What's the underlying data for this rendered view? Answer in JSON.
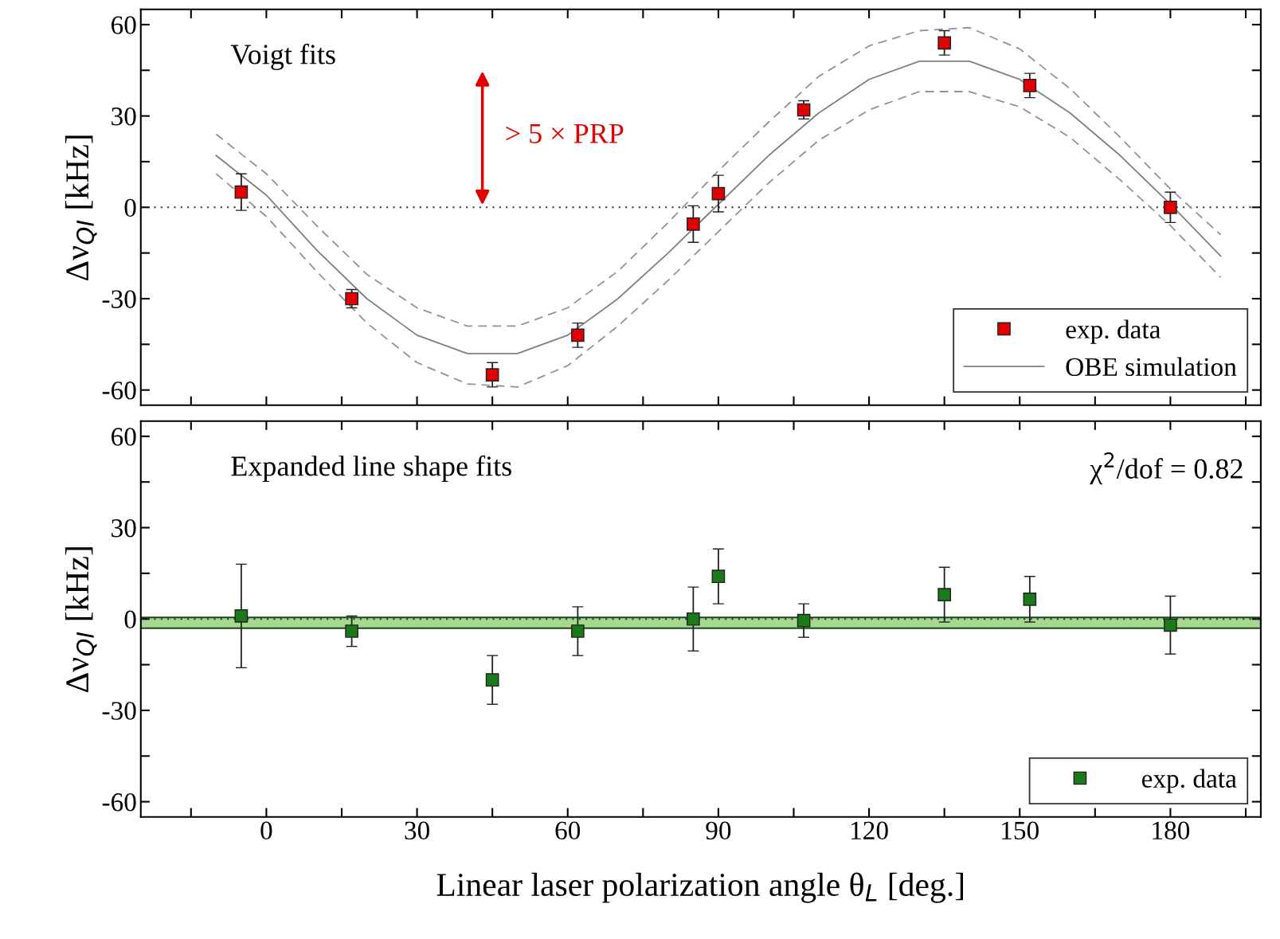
{
  "chart_data": [
    {
      "type": "scatter",
      "ylabel": "Δν$_{QI}$ [kHz]",
      "annotations": [
        "Voigt fits",
        "> 5 × PRP"
      ],
      "xlim": [
        -25,
        198
      ],
      "ylim": [
        -65,
        65
      ],
      "xticks": [
        {
          "value": -15,
          "label": null
        },
        {
          "value": 0,
          "label": null
        },
        {
          "value": 15,
          "label": null
        },
        {
          "value": 30,
          "label": null
        },
        {
          "value": 45,
          "label": null
        },
        {
          "value": 60,
          "label": null
        },
        {
          "value": 75,
          "label": null
        },
        {
          "value": 90,
          "label": null
        },
        {
          "value": 105,
          "label": null
        },
        {
          "value": 120,
          "label": null
        },
        {
          "value": 135,
          "label": null
        },
        {
          "value": 150,
          "label": null
        },
        {
          "value": 165,
          "label": null
        },
        {
          "value": 180,
          "label": null
        },
        {
          "value": 195,
          "label": null
        }
      ],
      "yticks": [
        60,
        {
          "value": 45,
          "label": null
        },
        30,
        {
          "value": 15,
          "label": null
        },
        0,
        {
          "value": -15,
          "label": null
        },
        -30,
        {
          "value": -45,
          "label": null
        },
        -60
      ],
      "tick_labels": "y",
      "legend": "bottom right",
      "grid": false,
      "ref_lines": [
        {
          "axis": "y",
          "value": 0,
          "label": null,
          "color": "#333333",
          "line_style": "dotted"
        }
      ],
      "series": [
        {
          "name": "exp. data",
          "color": "#e00000",
          "marker": "square",
          "x": [
            -5,
            17,
            45,
            62,
            85,
            90,
            107,
            135,
            152,
            180
          ],
          "values": [
            5,
            -30,
            -55,
            -42,
            -5.5,
            4.5,
            32,
            54,
            40,
            0
          ],
          "errors": [
            6,
            3,
            4,
            4,
            6,
            6,
            3,
            4,
            4,
            5
          ]
        },
        {
          "type": "line",
          "name": "OBE simulation",
          "color": "#808080",
          "line_style": "solid",
          "marker": "none",
          "x": [
            -10,
            0,
            10,
            20,
            30,
            40,
            50,
            60,
            70,
            80,
            90,
            100,
            110,
            120,
            130,
            140,
            150,
            160,
            170,
            180,
            190
          ],
          "values": [
            17,
            4,
            -14,
            -30,
            -42,
            -48,
            -48,
            -42,
            -30,
            -15,
            1,
            17,
            31,
            42,
            48,
            48,
            42,
            31,
            17,
            1,
            -16
          ]
        },
        {
          "type": "line",
          "color": "#9090a8",
          "line_style": "dashed",
          "marker": "none",
          "x": [
            -10,
            0,
            10,
            20,
            30,
            40,
            50,
            60,
            70,
            80,
            90,
            100,
            110,
            120,
            130,
            140,
            150,
            160,
            170,
            180,
            190
          ],
          "values": [
            24,
            11,
            -6,
            -22,
            -33,
            -39,
            -39,
            -33,
            -21,
            -5,
            12,
            28,
            43,
            53,
            58,
            59,
            52,
            39,
            23,
            6,
            -9
          ]
        },
        {
          "type": "line",
          "color": "#9090a8",
          "line_style": "dashed",
          "marker": "none",
          "x": [
            -10,
            0,
            10,
            20,
            30,
            40,
            50,
            60,
            70,
            80,
            90,
            100,
            110,
            120,
            130,
            140,
            150,
            160,
            170,
            180,
            190
          ],
          "values": [
            11,
            -3,
            -21,
            -38,
            -51,
            -58,
            -59,
            -52,
            -39,
            -24,
            -8,
            8,
            22,
            32,
            38,
            38,
            33,
            23,
            9,
            -6,
            -23
          ]
        }
      ]
    },
    {
      "type": "scatter",
      "ylabel": "Δν$_{QI}$ [kHz]",
      "xlabel": "Linear laser polarization angle θ$_{L}$ [deg.]",
      "annotations": [
        "Expanded line shape fits",
        "χ$^{2}$/dof = 0.82"
      ],
      "xlim": [
        -25,
        198
      ],
      "ylim": [
        -65,
        65
      ],
      "xticks": [
        {
          "value": -15,
          "label": null
        },
        0,
        {
          "value": 15,
          "label": null
        },
        30,
        {
          "value": 45,
          "label": null
        },
        60,
        {
          "value": 75,
          "label": null
        },
        90,
        {
          "value": 105,
          "label": null
        },
        120,
        {
          "value": 135,
          "label": null
        },
        150,
        {
          "value": 165,
          "label": null
        },
        180,
        {
          "value": 195,
          "label": null
        }
      ],
      "yticks": [
        60,
        {
          "value": 45,
          "label": null
        },
        30,
        {
          "value": 15,
          "label": null
        },
        0,
        {
          "value": -15,
          "label": null
        },
        -30,
        {
          "value": -45,
          "label": null
        },
        -60
      ],
      "legend": "bottom right",
      "grid": false,
      "ref_lines": [
        {
          "axis": "y",
          "value": 0,
          "label": null,
          "color": "#333333",
          "line_style": "dotted"
        }
      ],
      "bands": [
        {
          "axis": "y",
          "from": -3,
          "to": 0.5,
          "label": null,
          "color": "#a8d890"
        }
      ],
      "series": [
        {
          "name": "exp. data",
          "color": "#1a7a1a",
          "marker": "square",
          "x": [
            -5,
            17,
            45,
            62,
            85,
            90,
            107,
            135,
            152,
            180
          ],
          "values": [
            1,
            -4,
            -20,
            -4,
            0,
            14,
            -0.5,
            8,
            6.5,
            -2
          ],
          "errors": [
            17,
            5,
            8,
            8,
            10.5,
            9,
            5.5,
            9,
            7.5,
            9.5
          ]
        }
      ]
    }
  ]
}
